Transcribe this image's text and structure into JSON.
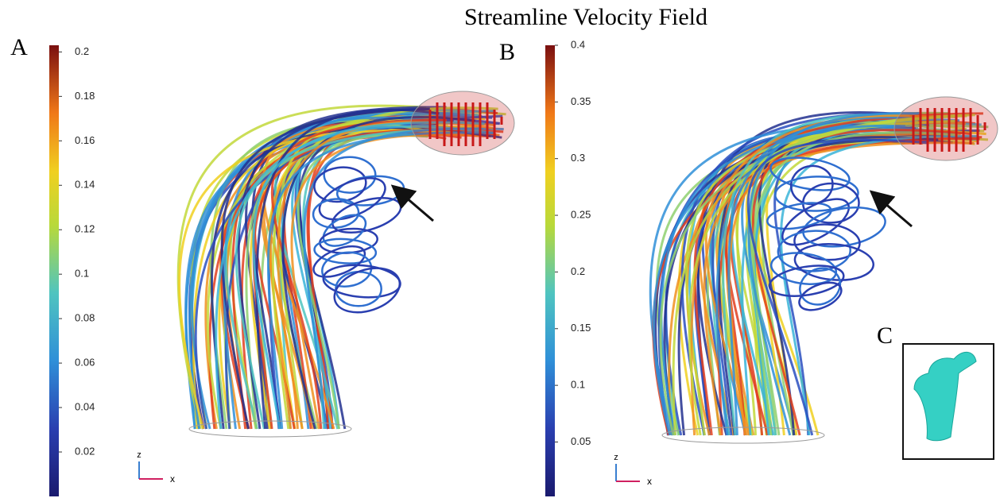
{
  "title": "Streamline Velocity Field",
  "panels": [
    {
      "label": "A",
      "colorbar": {
        "lim": [
          0,
          0.203
        ],
        "ticks": [
          0.02,
          0.04,
          0.06,
          0.08,
          0.1,
          0.12,
          0.14,
          0.16,
          0.18,
          0.2
        ]
      },
      "axes": {
        "vertical": "z",
        "horizontal": "x"
      }
    },
    {
      "label": "B",
      "colorbar": {
        "lim": [
          0.002,
          0.4
        ],
        "ticks": [
          0.05,
          0.1,
          0.15,
          0.2,
          0.25,
          0.3,
          0.35,
          0.4
        ]
      },
      "axes": {
        "vertical": "z",
        "horizontal": "x"
      }
    }
  ],
  "inset": {
    "label": "C"
  }
}
